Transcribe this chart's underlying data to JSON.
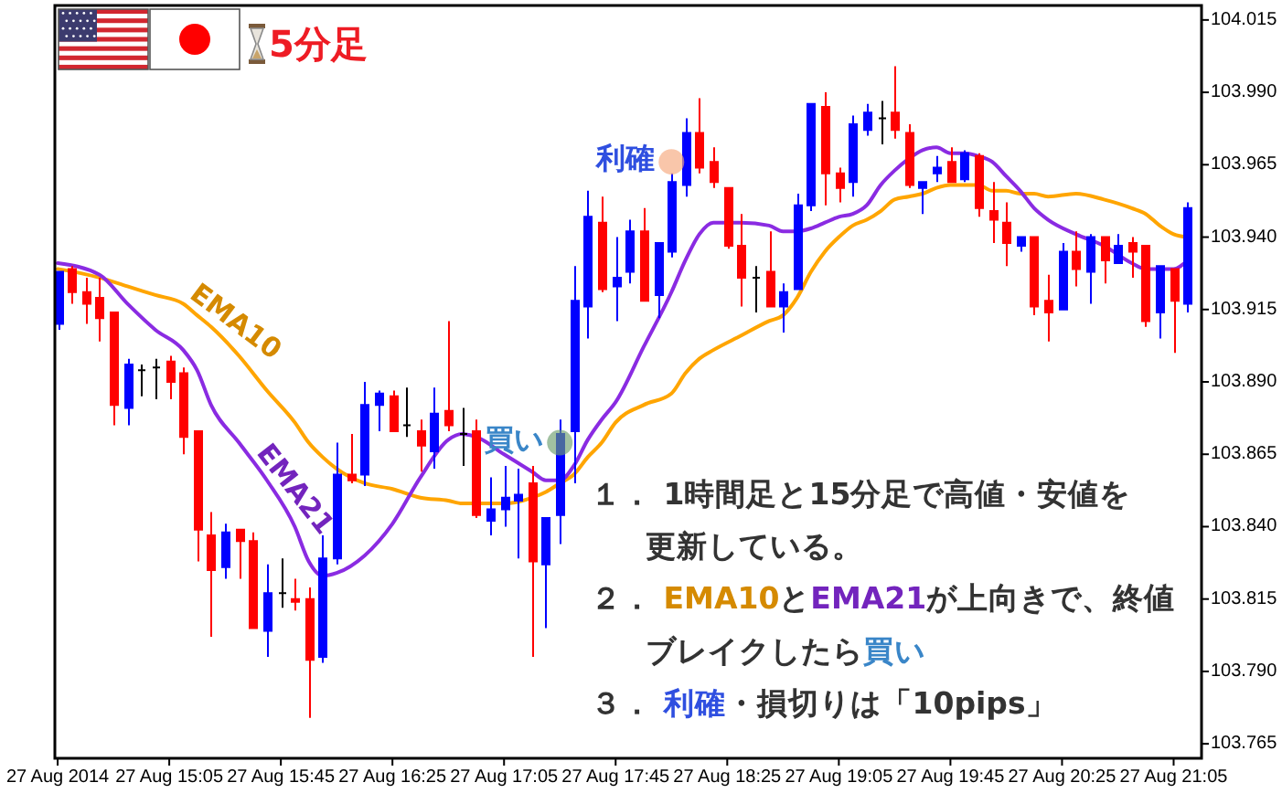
{
  "chart_data": {
    "type": "candlestick",
    "title": "5分足",
    "x": [
      "2014-08-27T14:25",
      "2014-08-27T14:30",
      "2014-08-27T14:35",
      "2014-08-27T14:40",
      "2014-08-27T14:45",
      "2014-08-27T14:50",
      "2014-08-27T14:55",
      "2014-08-27T15:00",
      "2014-08-27T15:05",
      "2014-08-27T15:10",
      "2014-08-27T15:15",
      "2014-08-27T15:20",
      "2014-08-27T15:25",
      "2014-08-27T15:30",
      "2014-08-27T15:35",
      "2014-08-27T15:40",
      "2014-08-27T15:45",
      "2014-08-27T15:50",
      "2014-08-27T15:55",
      "2014-08-27T16:00",
      "2014-08-27T16:05",
      "2014-08-27T16:10",
      "2014-08-27T16:15",
      "2014-08-27T16:20",
      "2014-08-27T16:25",
      "2014-08-27T16:30",
      "2014-08-27T16:35",
      "2014-08-27T16:40",
      "2014-08-27T16:45",
      "2014-08-27T16:50",
      "2014-08-27T16:55",
      "2014-08-27T17:00",
      "2014-08-27T17:05",
      "2014-08-27T17:10",
      "2014-08-27T17:15",
      "2014-08-27T17:20",
      "2014-08-27T17:25",
      "2014-08-27T17:30",
      "2014-08-27T17:35",
      "2014-08-27T17:40",
      "2014-08-27T17:45",
      "2014-08-27T17:50",
      "2014-08-27T17:55",
      "2014-08-27T18:00",
      "2014-08-27T18:05",
      "2014-08-27T18:10",
      "2014-08-27T18:15",
      "2014-08-27T18:20",
      "2014-08-27T18:25",
      "2014-08-27T18:30",
      "2014-08-27T18:35",
      "2014-08-27T18:40",
      "2014-08-27T18:45",
      "2014-08-27T18:50",
      "2014-08-27T18:55",
      "2014-08-27T19:00",
      "2014-08-27T19:05",
      "2014-08-27T19:10",
      "2014-08-27T19:15",
      "2014-08-27T19:20",
      "2014-08-27T19:25",
      "2014-08-27T19:30",
      "2014-08-27T19:35",
      "2014-08-27T19:40",
      "2014-08-27T19:45",
      "2014-08-27T19:50",
      "2014-08-27T19:55",
      "2014-08-27T20:00",
      "2014-08-27T20:05",
      "2014-08-27T20:10",
      "2014-08-27T20:15",
      "2014-08-27T20:20",
      "2014-08-27T20:25",
      "2014-08-27T20:30",
      "2014-08-27T20:35",
      "2014-08-27T20:40",
      "2014-08-27T20:45",
      "2014-08-27T20:50",
      "2014-08-27T20:55",
      "2014-08-27T21:00",
      "2014-08-27T21:05",
      "2014-08-27T21:10"
    ],
    "ohlc": [
      [
        103.91,
        103.928,
        103.908,
        103.928
      ],
      [
        103.929,
        103.93,
        103.917,
        103.921
      ],
      [
        103.921,
        103.926,
        103.91,
        103.917
      ],
      [
        103.919,
        103.926,
        103.904,
        103.912
      ],
      [
        103.914,
        103.914,
        103.875,
        103.882
      ],
      [
        103.881,
        103.898,
        103.875,
        103.896
      ],
      [
        103.894,
        103.896,
        103.885,
        103.894
      ],
      [
        103.895,
        103.898,
        103.884,
        103.895
      ],
      [
        103.897,
        103.899,
        103.884,
        103.89
      ],
      [
        103.893,
        103.895,
        103.865,
        103.871
      ],
      [
        103.873,
        103.873,
        103.828,
        103.839
      ],
      [
        103.837,
        103.845,
        103.802,
        103.825
      ],
      [
        103.826,
        103.841,
        103.822,
        103.838
      ],
      [
        103.839,
        103.839,
        103.822,
        103.835
      ],
      [
        103.835,
        103.838,
        103.805,
        103.805
      ],
      [
        103.804,
        103.827,
        103.795,
        103.817
      ],
      [
        103.817,
        103.829,
        103.812,
        103.817
      ],
      [
        103.815,
        103.822,
        103.811,
        103.814
      ],
      [
        103.815,
        103.819,
        103.774,
        103.794
      ],
      [
        103.795,
        103.837,
        103.793,
        103.829
      ],
      [
        103.829,
        103.869,
        103.827,
        103.858
      ],
      [
        103.858,
        103.872,
        103.855,
        103.856
      ],
      [
        103.858,
        103.89,
        103.854,
        103.882
      ],
      [
        103.882,
        103.887,
        103.873,
        103.886
      ],
      [
        103.885,
        103.887,
        103.873,
        103.873
      ],
      [
        103.875,
        103.888,
        103.871,
        103.875
      ],
      [
        103.873,
        103.877,
        103.859,
        103.868
      ],
      [
        103.866,
        103.888,
        103.86,
        103.879
      ],
      [
        103.88,
        103.911,
        103.873,
        103.875
      ],
      [
        103.872,
        103.881,
        103.861,
        103.872
      ],
      [
        103.873,
        103.877,
        103.843,
        103.844
      ],
      [
        103.842,
        103.857,
        103.837,
        103.846
      ],
      [
        103.846,
        103.861,
        103.84,
        103.85
      ],
      [
        103.849,
        103.86,
        103.829,
        103.851
      ],
      [
        103.855,
        103.861,
        103.795,
        103.828
      ],
      [
        103.827,
        103.843,
        103.805,
        103.843
      ],
      [
        103.844,
        103.877,
        103.834,
        103.872
      ],
      [
        103.873,
        103.93,
        103.855,
        103.918
      ],
      [
        103.916,
        103.956,
        103.905,
        103.947
      ],
      [
        103.945,
        103.954,
        103.921,
        103.922
      ],
      [
        103.923,
        103.94,
        103.911,
        103.926
      ],
      [
        103.928,
        103.946,
        103.924,
        103.942
      ],
      [
        103.942,
        103.95,
        103.918,
        103.918
      ],
      [
        103.92,
        103.938,
        103.912,
        103.938
      ],
      [
        103.935,
        103.962,
        103.933,
        103.959
      ],
      [
        103.958,
        103.981,
        103.954,
        103.976
      ],
      [
        103.976,
        103.988,
        103.962,
        103.964
      ],
      [
        103.966,
        103.971,
        103.957,
        103.959
      ],
      [
        103.957,
        103.957,
        103.936,
        103.937
      ],
      [
        103.937,
        103.948,
        103.916,
        103.926
      ],
      [
        103.926,
        103.93,
        103.914,
        103.926
      ],
      [
        103.928,
        103.942,
        103.916,
        103.916
      ],
      [
        103.916,
        103.924,
        103.907,
        103.921
      ],
      [
        103.922,
        103.955,
        103.922,
        103.951
      ],
      [
        103.951,
        103.986,
        103.949,
        103.986
      ],
      [
        103.985,
        103.99,
        103.951,
        103.962
      ],
      [
        103.962,
        103.964,
        103.952,
        103.957
      ],
      [
        103.959,
        103.982,
        103.954,
        103.979
      ],
      [
        103.977,
        103.986,
        103.975,
        103.983
      ],
      [
        103.981,
        103.987,
        103.972,
        103.981
      ],
      [
        103.983,
        103.999,
        103.974,
        103.977
      ],
      [
        103.976,
        103.979,
        103.957,
        103.958
      ],
      [
        103.957,
        103.959,
        103.948,
        103.959
      ],
      [
        103.962,
        103.968,
        103.959,
        103.964
      ],
      [
        103.966,
        103.971,
        103.959,
        103.959
      ],
      [
        103.96,
        103.97,
        103.959,
        103.969
      ],
      [
        103.968,
        103.969,
        103.947,
        103.95
      ],
      [
        103.949,
        103.959,
        103.938,
        103.946
      ],
      [
        103.945,
        103.952,
        103.93,
        103.938
      ],
      [
        103.937,
        103.94,
        103.935,
        103.94
      ],
      [
        103.94,
        103.94,
        103.913,
        103.916
      ],
      [
        103.918,
        103.927,
        103.904,
        103.914
      ],
      [
        103.915,
        103.938,
        103.915,
        103.935
      ],
      [
        103.935,
        103.942,
        103.923,
        103.929
      ],
      [
        103.928,
        103.941,
        103.917,
        103.94
      ],
      [
        103.94,
        103.94,
        103.924,
        103.932
      ],
      [
        103.931,
        103.941,
        103.931,
        103.937
      ],
      [
        103.938,
        103.94,
        103.926,
        103.935
      ],
      [
        103.937,
        103.937,
        103.909,
        103.911
      ],
      [
        103.914,
        103.93,
        103.905,
        103.93
      ],
      [
        103.929,
        103.929,
        103.9,
        103.918
      ],
      [
        103.917,
        103.952,
        103.914,
        103.95
      ]
    ],
    "colors": [
      "#0000ff",
      "#ff0000",
      "#ff0000",
      "#ff0000",
      "#ff0000",
      "#0000ff",
      "#000000",
      "#000000",
      "#ff0000",
      "#ff0000",
      "#ff0000",
      "#ff0000",
      "#0000ff",
      "#ff0000",
      "#ff0000",
      "#0000ff",
      "#000000",
      "#ff0000",
      "#ff0000",
      "#0000ff",
      "#0000ff",
      "#ff0000",
      "#0000ff",
      "#0000ff",
      "#ff0000",
      "#000000",
      "#ff0000",
      "#0000ff",
      "#ff0000",
      "#000000",
      "#ff0000",
      "#0000ff",
      "#0000ff",
      "#0000ff",
      "#ff0000",
      "#0000ff",
      "#0000ff",
      "#0000ff",
      "#0000ff",
      "#ff0000",
      "#0000ff",
      "#0000ff",
      "#ff0000",
      "#0000ff",
      "#0000ff",
      "#0000ff",
      "#ff0000",
      "#ff0000",
      "#ff0000",
      "#ff0000",
      "#000000",
      "#ff0000",
      "#0000ff",
      "#0000ff",
      "#0000ff",
      "#ff0000",
      "#ff0000",
      "#0000ff",
      "#0000ff",
      "#000000",
      "#ff0000",
      "#ff0000",
      "#0000ff",
      "#0000ff",
      "#ff0000",
      "#0000ff",
      "#ff0000",
      "#ff0000",
      "#ff0000",
      "#0000ff",
      "#ff0000",
      "#ff0000",
      "#0000ff",
      "#ff0000",
      "#0000ff",
      "#ff0000",
      "#0000ff",
      "#ff0000",
      "#ff0000",
      "#0000ff",
      "#ff0000",
      "#0000ff"
    ],
    "series": [
      {
        "name": "EMA10",
        "type": "line",
        "color": "#ffa500",
        "x": [
          "2014-08-27T14:25",
          "2014-08-27T14:40",
          "2014-08-27T14:50",
          "2014-08-27T15:00",
          "2014-08-27T15:10",
          "2014-08-27T15:15",
          "2014-08-27T15:20",
          "2014-08-27T15:30",
          "2014-08-27T15:40",
          "2014-08-27T15:50",
          "2014-08-27T15:55",
          "2014-08-27T16:00",
          "2014-08-27T16:05",
          "2014-08-27T16:15",
          "2014-08-27T16:25",
          "2014-08-27T16:35",
          "2014-08-27T16:45",
          "2014-08-27T16:50",
          "2014-08-27T16:55",
          "2014-08-27T17:05",
          "2014-08-27T17:15",
          "2014-08-27T17:20",
          "2014-08-27T17:25",
          "2014-08-27T17:30",
          "2014-08-27T17:35",
          "2014-08-27T17:40",
          "2014-08-27T17:45",
          "2014-08-27T17:55",
          "2014-08-27T18:05",
          "2014-08-27T18:10",
          "2014-08-27T18:15",
          "2014-08-27T18:20",
          "2014-08-27T18:30",
          "2014-08-27T18:40",
          "2014-08-27T18:45",
          "2014-08-27T18:50",
          "2014-08-27T18:55",
          "2014-08-27T19:00",
          "2014-08-27T19:05",
          "2014-08-27T19:10",
          "2014-08-27T19:15",
          "2014-08-27T19:20",
          "2014-08-27T19:25",
          "2014-08-27T19:30",
          "2014-08-27T19:35",
          "2014-08-27T19:40",
          "2014-08-27T19:45",
          "2014-08-27T19:50",
          "2014-08-27T19:55",
          "2014-08-27T20:00",
          "2014-08-27T20:05",
          "2014-08-27T20:10",
          "2014-08-27T20:15",
          "2014-08-27T20:20",
          "2014-08-27T20:30",
          "2014-08-27T20:40",
          "2014-08-27T20:50",
          "2014-08-27T20:55",
          "2014-08-27T21:00",
          "2014-08-27T21:05",
          "2014-08-27T21:10"
        ],
        "values": [
          103.929,
          103.926,
          103.923,
          103.92,
          103.917,
          103.913,
          103.909,
          103.899,
          103.887,
          103.876,
          103.869,
          103.864,
          103.86,
          103.855,
          103.853,
          103.85,
          103.849,
          103.848,
          103.848,
          103.848,
          103.85,
          103.852,
          103.855,
          103.858,
          103.864,
          103.869,
          103.876,
          103.882,
          103.886,
          103.893,
          103.898,
          103.901,
          103.906,
          103.911,
          103.913,
          103.919,
          103.928,
          103.935,
          103.94,
          103.944,
          103.946,
          103.949,
          103.953,
          103.954,
          103.955,
          103.957,
          103.958,
          103.958,
          103.958,
          103.956,
          103.956,
          103.955,
          103.955,
          103.954,
          103.955,
          103.953,
          103.95,
          103.948,
          103.944,
          103.941,
          103.94
        ]
      },
      {
        "name": "EMA21",
        "type": "line",
        "color": "#8a2be2",
        "x": [
          "2014-08-27T14:25",
          "2014-08-27T14:40",
          "2014-08-27T14:50",
          "2014-08-27T15:00",
          "2014-08-27T15:10",
          "2014-08-27T15:15",
          "2014-08-27T15:20",
          "2014-08-27T15:30",
          "2014-08-27T15:40",
          "2014-08-27T15:50",
          "2014-08-27T15:55",
          "2014-08-27T16:00",
          "2014-08-27T16:05",
          "2014-08-27T16:15",
          "2014-08-27T16:25",
          "2014-08-27T16:35",
          "2014-08-27T16:45",
          "2014-08-27T16:50",
          "2014-08-27T16:55",
          "2014-08-27T17:05",
          "2014-08-27T17:15",
          "2014-08-27T17:20",
          "2014-08-27T17:25",
          "2014-08-27T17:30",
          "2014-08-27T17:35",
          "2014-08-27T17:40",
          "2014-08-27T17:45",
          "2014-08-27T17:55",
          "2014-08-27T18:05",
          "2014-08-27T18:10",
          "2014-08-27T18:15",
          "2014-08-27T18:20",
          "2014-08-27T18:30",
          "2014-08-27T18:40",
          "2014-08-27T18:45",
          "2014-08-27T18:50",
          "2014-08-27T18:55",
          "2014-08-27T19:00",
          "2014-08-27T19:05",
          "2014-08-27T19:10",
          "2014-08-27T19:15",
          "2014-08-27T19:20",
          "2014-08-27T19:25",
          "2014-08-27T19:30",
          "2014-08-27T19:35",
          "2014-08-27T19:40",
          "2014-08-27T19:45",
          "2014-08-27T19:50",
          "2014-08-27T19:55",
          "2014-08-27T20:00",
          "2014-08-27T20:05",
          "2014-08-27T20:10",
          "2014-08-27T20:15",
          "2014-08-27T20:20",
          "2014-08-27T20:30",
          "2014-08-27T20:40",
          "2014-08-27T20:50",
          "2014-08-27T20:55",
          "2014-08-27T21:00",
          "2014-08-27T21:05",
          "2014-08-27T21:10"
        ],
        "values": [
          103.931,
          103.927,
          103.917,
          103.908,
          103.901,
          103.894,
          103.882,
          103.869,
          103.856,
          103.84,
          103.828,
          103.823,
          103.824,
          103.83,
          103.841,
          103.857,
          103.87,
          103.872,
          103.871,
          103.865,
          103.859,
          103.856,
          103.856,
          103.861,
          103.87,
          103.877,
          103.883,
          103.902,
          103.921,
          103.932,
          103.941,
          103.945,
          103.945,
          103.944,
          103.942,
          103.942,
          103.943,
          103.945,
          103.947,
          103.948,
          103.951,
          103.958,
          103.963,
          103.967,
          103.97,
          103.971,
          103.969,
          103.969,
          103.968,
          103.966,
          103.961,
          103.956,
          103.95,
          103.946,
          103.941,
          103.937,
          103.931,
          103.929,
          103.929,
          103.929,
          103.932
        ]
      }
    ],
    "xlim": [
      "2014-08-27T14:24",
      "2014-08-27T21:15"
    ],
    "xticks": [
      {
        "value": "2014-08-27T14:25",
        "label": "27 Aug 2014"
      },
      {
        "value": "2014-08-27T15:05",
        "label": "27 Aug 15:05"
      },
      {
        "value": "2014-08-27T15:45",
        "label": "27 Aug 15:45"
      },
      {
        "value": "2014-08-27T16:25",
        "label": "27 Aug 16:25"
      },
      {
        "value": "2014-08-27T17:05",
        "label": "27 Aug 17:05"
      },
      {
        "value": "2014-08-27T17:45",
        "label": "27 Aug 17:45"
      },
      {
        "value": "2014-08-27T18:25",
        "label": "27 Aug 18:25"
      },
      {
        "value": "2014-08-27T19:05",
        "label": "27 Aug 19:05"
      },
      {
        "value": "2014-08-27T19:45",
        "label": "27 Aug 19:45"
      },
      {
        "value": "2014-08-27T20:25",
        "label": "27 Aug 20:25"
      },
      {
        "value": "2014-08-27T21:05",
        "label": "27 Aug 21:05"
      }
    ],
    "ylim": [
      103.76,
      104.02
    ],
    "yticks": [
      104.015,
      {
        "value": 103.99,
        "label": "103.990"
      },
      103.965,
      {
        "value": 103.94,
        "label": "103.940"
      },
      103.915,
      {
        "value": 103.89,
        "label": "103.890"
      },
      103.865,
      {
        "value": 103.84,
        "label": "103.840"
      },
      103.815,
      {
        "value": 103.79,
        "label": "103.790"
      },
      103.765
    ],
    "annotations": [
      "１． 1時間足と15分足で高値・安値を",
      "更新している。",
      "２． EMA10とEMA21が上向きで、終値",
      "ブレイクしたら買い",
      "３． 利確・損切りは「10pips」",
      {
        "text": "買い",
        "x": "2014-08-27T17:25",
        "y": 103.869
      },
      {
        "text": "利確",
        "x": "2014-08-27T18:05",
        "y": 103.966
      }
    ]
  }
}
